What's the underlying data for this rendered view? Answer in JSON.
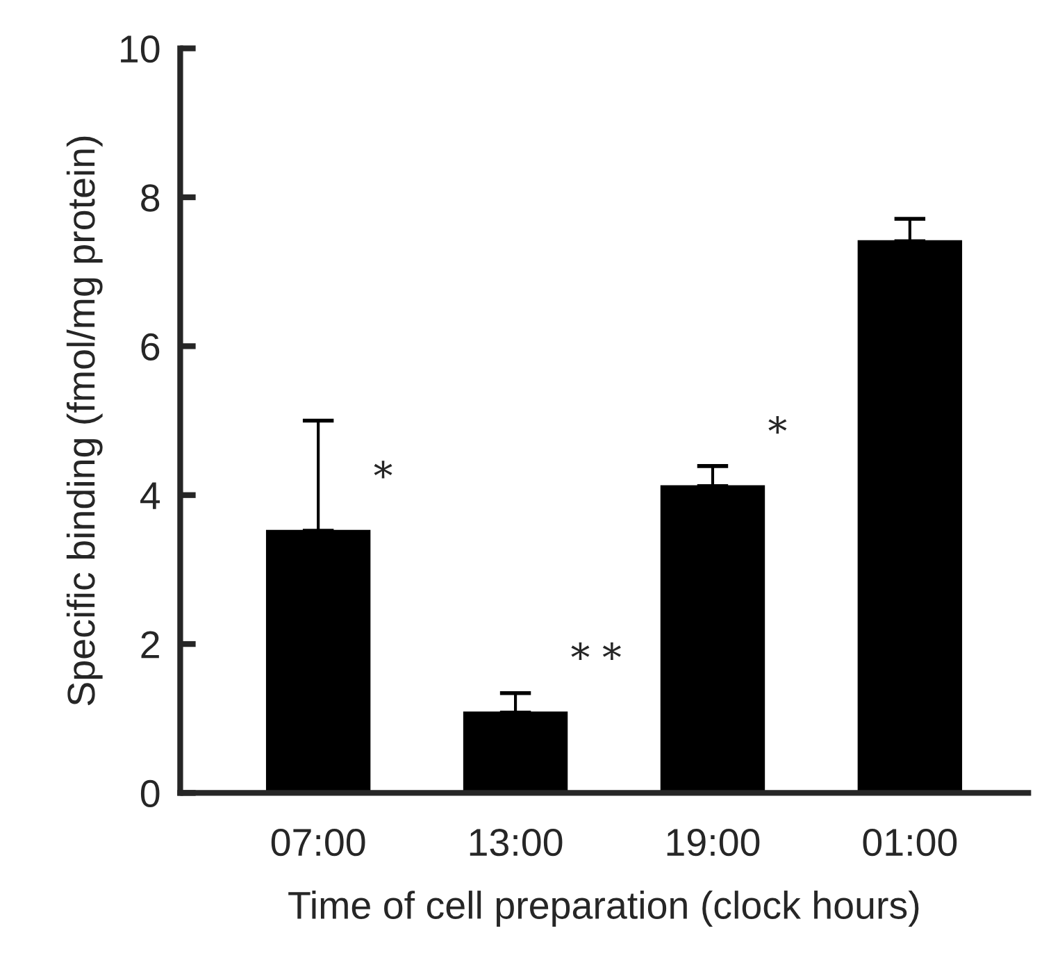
{
  "chart_data": {
    "type": "bar",
    "xlabel": "Time of cell preparation (clock hours)",
    "ylabel": "Specific binding (fmol/mg protein)",
    "categories": [
      "07:00",
      "13:00",
      "19:00",
      "01:00"
    ],
    "values": [
      3.52,
      1.08,
      4.12,
      7.41
    ],
    "errors": [
      [
        3.52,
        5.0
      ],
      [
        1.08,
        1.34
      ],
      [
        4.12,
        4.39
      ],
      [
        7.41,
        7.71
      ]
    ],
    "color": "#000000",
    "ylim": [
      0,
      10
    ],
    "yticks": [
      0,
      2,
      4,
      6,
      8,
      10
    ],
    "grid": false,
    "legend": false,
    "annotations": [
      "*",
      "* *",
      "*"
    ]
  }
}
